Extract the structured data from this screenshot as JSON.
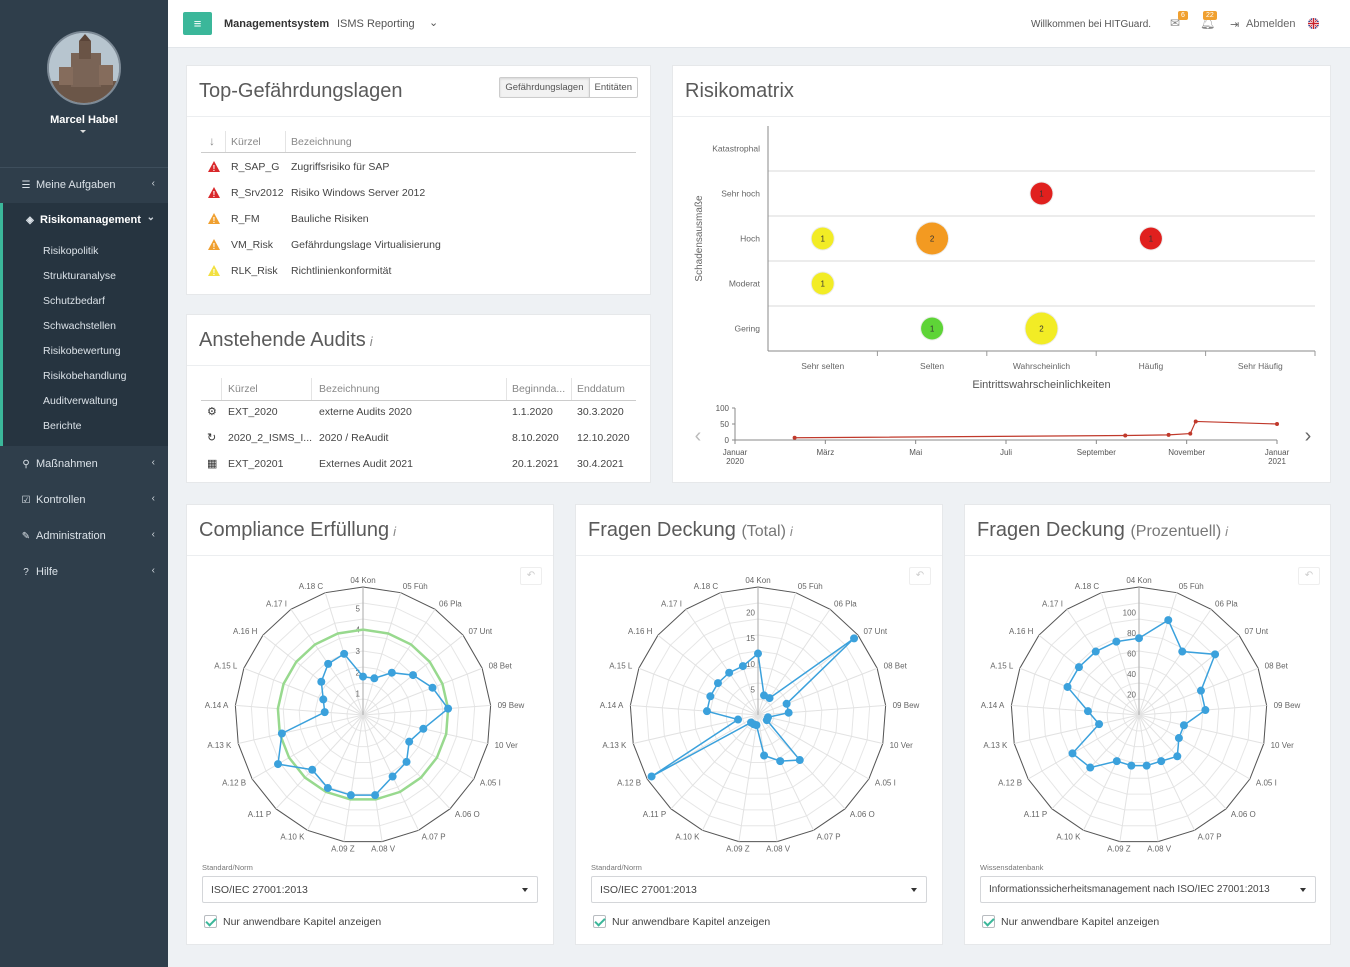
{
  "sidebar": {
    "user_name": "Marcel Habel",
    "nav": [
      {
        "label": "Meine Aufgaben",
        "icon": "list-icon"
      },
      {
        "label": "Risikomanagement",
        "icon": "shield-icon"
      },
      {
        "label": "Maßnahmen",
        "icon": "search-icon"
      },
      {
        "label": "Kontrollen",
        "icon": "checkbox-icon"
      },
      {
        "label": "Administration",
        "icon": "wrench-icon"
      },
      {
        "label": "Hilfe",
        "icon": "help-icon"
      }
    ],
    "submenu": [
      "Risikopolitik",
      "Strukturanalyse",
      "Schutzbedarf",
      "Schwachstellen",
      "Risikobewertung",
      "Risikobehandlung",
      "Auditverwaltung",
      "Berichte"
    ]
  },
  "topbar": {
    "app": "Managementsystem",
    "module": "ISMS Reporting",
    "welcome": "Willkommen bei HITGuard.",
    "mail_count": "6",
    "bell_count": "22",
    "logout": "Abmelden"
  },
  "threats": {
    "title": "Top-Gefährdungslagen",
    "toggle": [
      "Gefährdungslagen",
      "Entitäten"
    ],
    "columns": [
      "Kürzel",
      "Bezeichnung"
    ],
    "rows": [
      {
        "code": "R_SAP_G",
        "name": "Zugriffsrisiko für SAP",
        "color": "#d9282b"
      },
      {
        "code": "R_Srv2012",
        "name": "Risiko Windows Server 2012",
        "color": "#d9282b"
      },
      {
        "code": "R_FM",
        "name": "Bauliche Risiken",
        "color": "#f0a030"
      },
      {
        "code": "VM_Risk",
        "name": "Gefährdungslage Virtualisierung",
        "color": "#f0a030"
      },
      {
        "code": "RLK_Risk",
        "name": "Richtlinienkonformität",
        "color": "#f2e040"
      }
    ]
  },
  "audits": {
    "title": "Anstehende Audits",
    "info": "i",
    "columns": [
      "Kürzel",
      "Bezeichnung",
      "Beginnda...",
      "Enddatum"
    ],
    "rows": [
      {
        "icon": "gears-icon",
        "glyph": "⚙",
        "code": "EXT_2020",
        "name": "externe Audits 2020",
        "start": "1.1.2020",
        "end": "30.3.2020"
      },
      {
        "icon": "refresh-icon",
        "glyph": "↻",
        "code": "2020_2_ISMS_I...",
        "name": "2020 / ReAudit",
        "start": "8.10.2020",
        "end": "12.10.2020"
      },
      {
        "icon": "calendar-icon",
        "glyph": "▦",
        "code": "EXT_20201",
        "name": "Externes Audit 2021",
        "start": "20.1.2021",
        "end": "30.4.2021"
      }
    ]
  },
  "matrix": {
    "title": "Risikomatrix",
    "ylabel": "Schadensausmaße",
    "xlabel": "Eintrittswahrscheinlichkeiten",
    "rows": [
      "Katastrophal",
      "Sehr hoch",
      "Hoch",
      "Moderat",
      "Gering"
    ],
    "cols": [
      "Sehr selten",
      "Selten",
      "Wahrscheinlich",
      "Häufig",
      "Sehr Häufig"
    ],
    "bubbles": [
      {
        "row": "Sehr hoch",
        "col": "Wahrscheinlich",
        "count": 1,
        "color": "#e0201e"
      },
      {
        "row": "Hoch",
        "col": "Sehr selten",
        "count": 1,
        "color": "#f2ec25"
      },
      {
        "row": "Hoch",
        "col": "Selten",
        "count": 2,
        "color": "#f39a21"
      },
      {
        "row": "Hoch",
        "col": "Häufig",
        "count": 1,
        "color": "#e0201e"
      },
      {
        "row": "Moderat",
        "col": "Sehr selten",
        "count": 1,
        "color": "#f2ec25"
      },
      {
        "row": "Gering",
        "col": "Selten",
        "count": 1,
        "color": "#5ed437"
      },
      {
        "row": "Gering",
        "col": "Wahrscheinlich",
        "count": 2,
        "color": "#f2ec25"
      }
    ],
    "timeline": {
      "yticks": [
        "100",
        "50",
        "0"
      ],
      "xticks": [
        "Januar 2020",
        "März",
        "Mai",
        "Juli",
        "September",
        "November",
        "Januar 2021"
      ],
      "points": [
        [
          0.11,
          7
        ],
        [
          0.72,
          14
        ],
        [
          0.8,
          16
        ],
        [
          0.84,
          20
        ],
        [
          0.85,
          58
        ],
        [
          1.0,
          50
        ]
      ]
    }
  },
  "compliance": {
    "title": "Compliance Erfüllung",
    "info": "i",
    "axes": [
      "04 Kon",
      "05 Füh",
      "06 Pla",
      "07 Unt",
      "08 Bet",
      "09 Bew",
      "10 Ver",
      "A.05 I",
      "A.06 O",
      "A.07 P",
      "A.08 V",
      "A.09 Z",
      "A.10 K",
      "A.11 P",
      "A.12 B",
      "A.13 K",
      "A.14 A",
      "A.15 L",
      "A.16 H",
      "A.17 I",
      "A.18 C"
    ],
    "ticks": [
      "1",
      "2",
      "3",
      "4",
      "5"
    ],
    "values": [
      1.8,
      1.8,
      2.4,
      3.0,
      3.5,
      4.0,
      2.9,
      2.5,
      3.0,
      3.2,
      3.8,
      3.8,
      3.8,
      3.5,
      4.6,
      3.9,
      1.8,
      2.0,
      2.5,
      2.9,
      3.0
    ],
    "target": 4,
    "select_label": "Standard/Norm",
    "select_value": "ISO/IEC 27001:2013",
    "checkbox": "Nur anwendbare Kapitel anzeigen"
  },
  "coverage_total": {
    "title": "Fragen Deckung",
    "subtitle": "(Total)",
    "info": "i",
    "axes": [
      "04 Kon",
      "05 Füh",
      "06 Pla",
      "07 Unt",
      "08 Bet",
      "09 Bew",
      "10 Ver",
      "A.05 I",
      "A.06 O",
      "A.07 P",
      "A.08 V",
      "A.09 Z",
      "A.10 K",
      "A.11 P",
      "A.12 B",
      "A.13 K",
      "A.14 A",
      "A.15 L",
      "A.16 H",
      "A.17 I",
      "A.18 C"
    ],
    "ticks": [
      "5",
      "10",
      "15",
      "20"
    ],
    "values": [
      12,
      4,
      4,
      24,
      6,
      6,
      2,
      2,
      12,
      10,
      8,
      2,
      2,
      2,
      24,
      4,
      10,
      10,
      10,
      10,
      10
    ],
    "select_label": "Standard/Norm",
    "select_value": "ISO/IEC 27001:2013",
    "checkbox": "Nur anwendbare Kapitel anzeigen"
  },
  "coverage_percent": {
    "title": "Fragen Deckung",
    "subtitle": "(Prozentuell)",
    "info": "i",
    "axes": [
      "04 Kon",
      "05 Füh",
      "06 Pla",
      "07 Unt",
      "08 Bet",
      "09 Bew",
      "10 Ver",
      "A.05 I",
      "A.06 O",
      "A.07 P",
      "A.08 V",
      "A.09 Z",
      "A.10 K",
      "A.11 P",
      "A.12 B",
      "A.13 K",
      "A.14 A",
      "A.15 L",
      "A.16 H",
      "A.17 I",
      "A.18 C"
    ],
    "ticks": [
      "20",
      "40",
      "60",
      "80",
      "100"
    ],
    "values": [
      75,
      97,
      75,
      95,
      65,
      65,
      45,
      45,
      55,
      50,
      50,
      50,
      50,
      70,
      75,
      40,
      50,
      75,
      75,
      75,
      75
    ],
    "select_label": "Wissensdatenbank",
    "select_value": "Informationssicherheitsmanagement nach ISO/IEC 27001:2013",
    "checkbox": "Nur anwendbare Kapitel anzeigen"
  }
}
